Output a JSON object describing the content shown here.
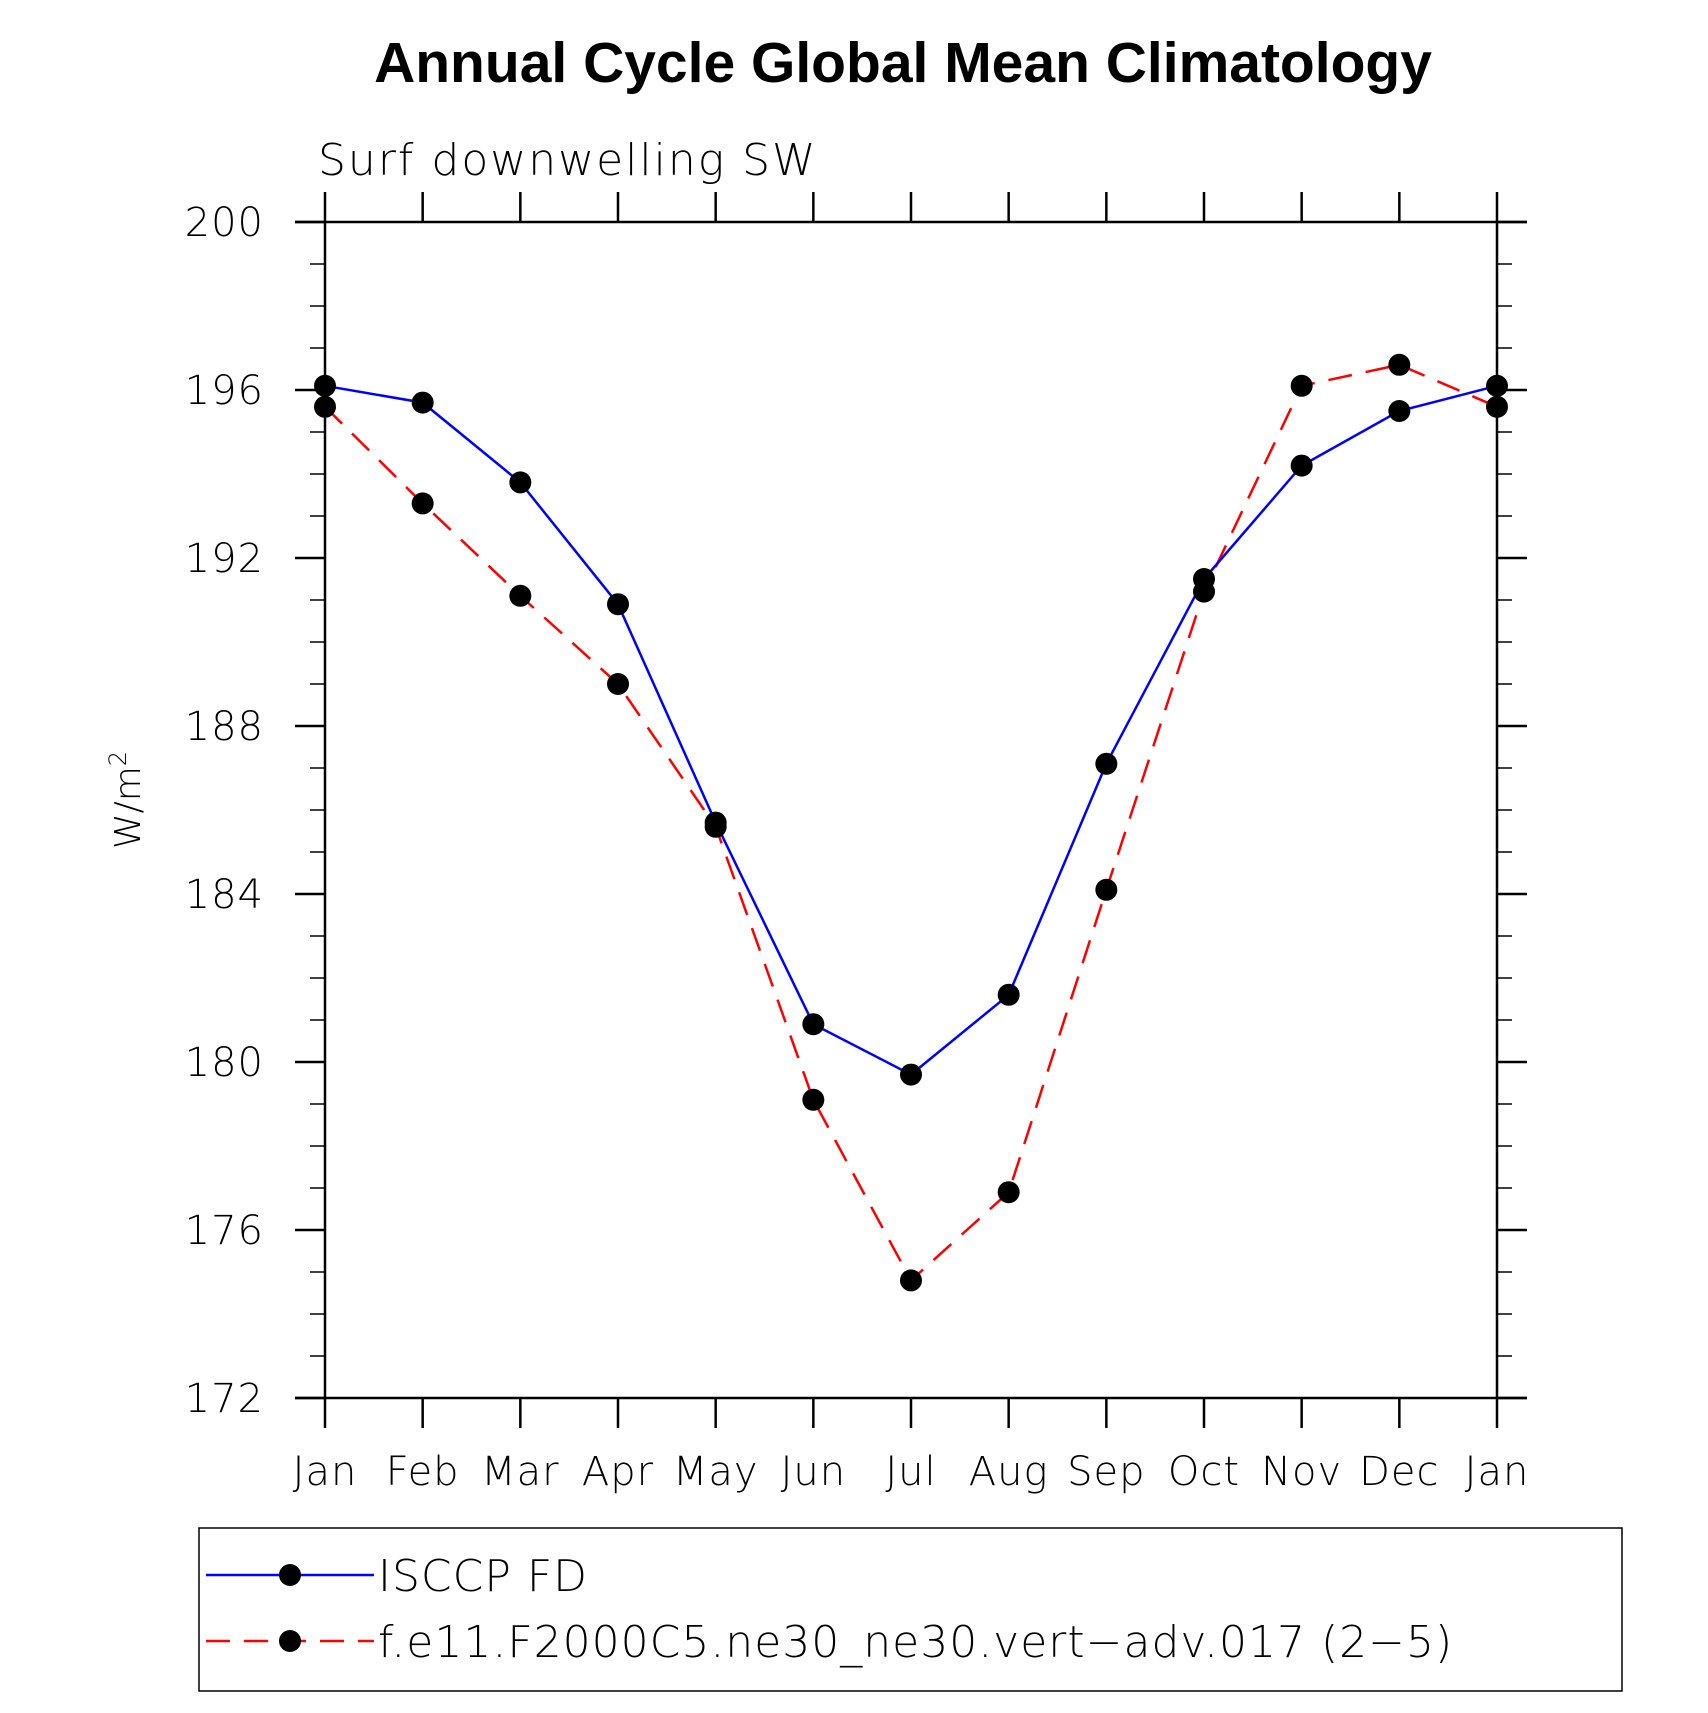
{
  "chart_data": {
    "type": "line",
    "title": "Annual Cycle Global Mean Climatology",
    "subtitle": "Surf downwelling SW",
    "ylabel_base": "W/m",
    "ylabel_sup": "2",
    "xlabel": "",
    "categories": [
      "Jan",
      "Feb",
      "Mar",
      "Apr",
      "May",
      "Jun",
      "Jul",
      "Aug",
      "Sep",
      "Oct",
      "Nov",
      "Dec",
      "Jan"
    ],
    "ylim": [
      172,
      200
    ],
    "yticks": [
      172,
      176,
      180,
      184,
      188,
      192,
      196,
      200
    ],
    "y_minor_step": 1,
    "grid": false,
    "legend_position": "bottom",
    "series": [
      {
        "name": "ISCCP FD",
        "color": "#0000ff",
        "line_style": "solid",
        "marker": "filled-circle",
        "values": [
          196.1,
          195.7,
          193.8,
          190.9,
          185.7,
          180.9,
          179.7,
          181.6,
          187.1,
          191.5,
          194.2,
          195.5,
          196.1
        ]
      },
      {
        "name": "f.e11.F2000C5.ne30_ne30.vert−adv.017 (2−5)",
        "color": "#ff0000",
        "line_style": "dashed",
        "marker": "filled-circle",
        "values": [
          195.6,
          193.3,
          191.1,
          189.0,
          185.6,
          179.1,
          174.8,
          176.9,
          184.1,
          191.2,
          196.1,
          196.6,
          195.6
        ]
      }
    ]
  }
}
